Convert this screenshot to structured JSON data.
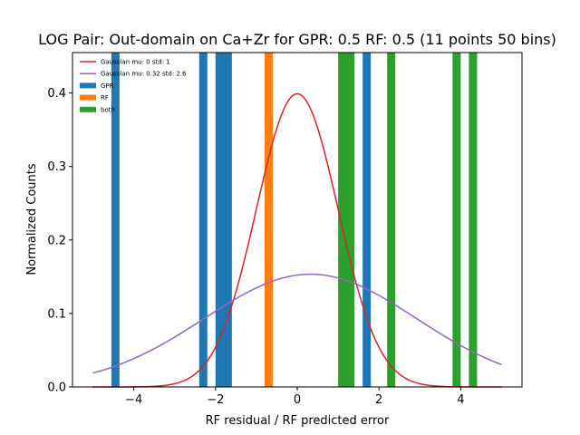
{
  "chart_data": {
    "type": "bar",
    "title": "LOG Pair: Out-domain on Ca+Zr for GPR: 0.5 RF: 0.5 (11 points 50 bins)",
    "xlabel": "RF residual / RF predicted error",
    "ylabel": "Normalized Counts",
    "xlim": [
      -5.5,
      5.5
    ],
    "ylim": [
      0,
      0.455
    ],
    "xticks": [
      -4,
      -2,
      0,
      2,
      4
    ],
    "yticks": [
      0.0,
      0.1,
      0.2,
      0.3,
      0.4
    ],
    "xtick_labels": [
      "−4",
      "−2",
      "0",
      "2",
      "4"
    ],
    "ytick_labels": [
      "0.0",
      "0.1",
      "0.2",
      "0.3",
      "0.4"
    ],
    "grid": false,
    "legend_position": "top-left",
    "bar_series": [
      {
        "name": "GPR",
        "color": "#1f77b4",
        "bars": [
          {
            "x0": -4.55,
            "x1": -4.35
          },
          {
            "x0": -2.4,
            "x1": -2.2
          },
          {
            "x0": -2.0,
            "x1": -1.6
          },
          {
            "x0": 1.6,
            "x1": 1.8
          }
        ]
      },
      {
        "name": "RF",
        "color": "#ff7f0e",
        "bars": [
          {
            "x0": -0.8,
            "x1": -0.6
          }
        ]
      },
      {
        "name": "both",
        "color": "#2ca02c",
        "bars": [
          {
            "x0": 1.0,
            "x1": 1.4
          },
          {
            "x0": 2.2,
            "x1": 2.4
          },
          {
            "x0": 3.8,
            "x1": 4.0
          },
          {
            "x0": 4.2,
            "x1": 4.4
          }
        ]
      }
    ],
    "curves": [
      {
        "name": "Gaussian mu: 0 std: 1",
        "mu": 0,
        "std": 1,
        "color": "#d62728",
        "x_range": [
          -5,
          5
        ]
      },
      {
        "name": "Gaussian mu: 0.32 std: 2.6",
        "mu": 0.32,
        "std": 2.6,
        "color": "#9467bd",
        "x_range": [
          -5,
          5
        ]
      }
    ]
  }
}
